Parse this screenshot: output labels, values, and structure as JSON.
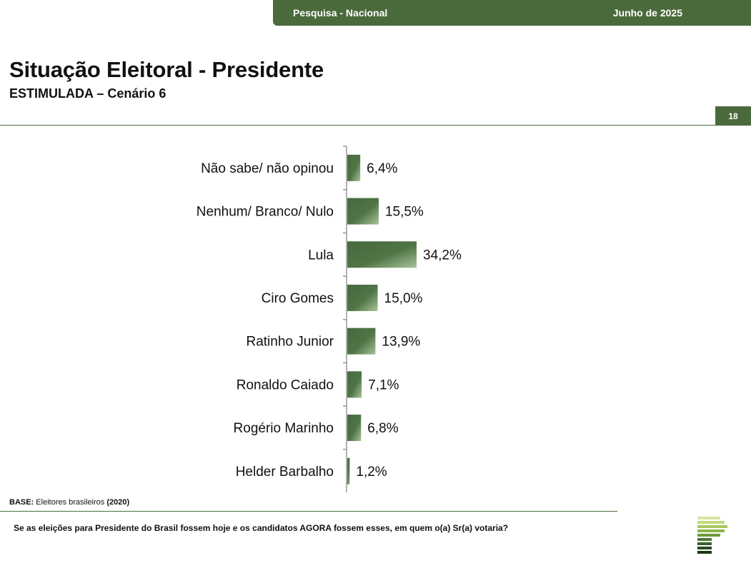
{
  "header": {
    "survey_label": "Pesquisa - Nacional",
    "date_label": "Junho de 2025"
  },
  "page": {
    "title": "Situação Eleitoral - Presidente",
    "subtitle": "ESTIMULADA – Cenário 6",
    "page_number": "18"
  },
  "footer": {
    "base_label": "BASE:",
    "base_text": "Eleitores brasileiros",
    "base_count": "(2020)",
    "question": "Se as eleições para Presidente do Brasil fossem hoje e os candidatos AGORA fossem esses, em quem o(a) Sr(a) votaria?"
  },
  "colors": {
    "brand_green": "#4a6a3c",
    "bar_dark": "#466a3e",
    "bar_light": "#a8c39a"
  },
  "chart_data": {
    "type": "bar",
    "orientation": "horizontal",
    "categories": [
      "Não sabe/ não opinou",
      "Nenhum/ Branco/ Nulo",
      "Lula",
      "Ciro Gomes",
      "Ratinho Junior",
      "Ronaldo Caiado",
      "Rogério Marinho",
      "Helder Barbalho"
    ],
    "values": [
      6.4,
      15.5,
      34.2,
      15.0,
      13.9,
      7.1,
      6.8,
      1.2
    ],
    "value_labels": [
      "6,4%",
      "15,5%",
      "34,2%",
      "15,0%",
      "13,9%",
      "7,1%",
      "6,8%",
      "1,2%"
    ],
    "unit": "%",
    "xlim": [
      0,
      34.2
    ]
  }
}
